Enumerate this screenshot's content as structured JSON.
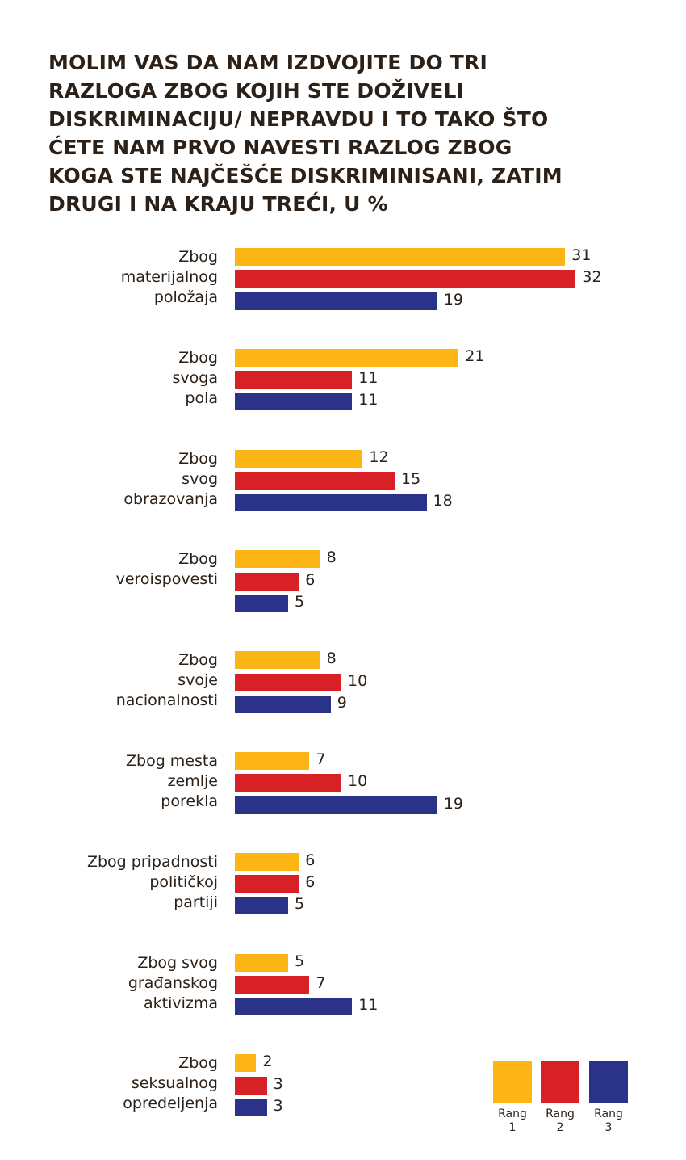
{
  "chart_data": {
    "type": "bar",
    "orientation": "horizontal",
    "title_lines": [
      "MOLIM VAS DA NAM IZDVOJITE DO TRI",
      "RAZLOGA ZBOG KOJIH STE DOŽIVELI",
      "DISKRIMINACIJU/ NEPRAVDU I TO TAKO ŠTO",
      "ĆETE NAM PRVO NAVESTI RAZLOG ZBOG",
      "KOGA STE NAJČEŠĆE DISKRIMINISANI, ZATIM",
      "DRUGI I NA KRAJU TREĆI, U %"
    ],
    "categories": [
      [
        "Zbog",
        "materijalnog",
        "položaja"
      ],
      [
        "Zbog",
        "svoga",
        "pola"
      ],
      [
        "Zbog",
        "svog",
        "obrazovanja"
      ],
      [
        "Zbog",
        "veroispovesti"
      ],
      [
        "Zbog",
        "svoje",
        "nacionalnosti"
      ],
      [
        "Zbog mesta",
        "zemlje",
        "porekla"
      ],
      [
        "Zbog pripadnosti",
        "političkoj",
        "partiji"
      ],
      [
        "Zbog svog",
        "građanskog",
        "aktivizma"
      ],
      [
        "Zbog",
        "seksualnog",
        "opredeljenja"
      ]
    ],
    "series": [
      {
        "name": "Rang 1",
        "legend_lines": [
          "Rang",
          "1"
        ],
        "color": "#FDB515",
        "values": [
          31,
          21,
          12,
          8,
          8,
          7,
          6,
          5,
          2
        ]
      },
      {
        "name": "Rang 2",
        "legend_lines": [
          "Rang",
          "2"
        ],
        "color": "#D82027",
        "values": [
          32,
          11,
          15,
          6,
          10,
          10,
          6,
          7,
          3
        ]
      },
      {
        "name": "Rang 3",
        "legend_lines": [
          "Rang",
          "3"
        ],
        "color": "#2B3388",
        "values": [
          19,
          11,
          18,
          5,
          9,
          19,
          5,
          11,
          3
        ]
      }
    ],
    "xlim": [
      0,
      32
    ],
    "grid": false,
    "axes_visible": false,
    "data_labels": true,
    "legend_position": "bottom-right"
  }
}
